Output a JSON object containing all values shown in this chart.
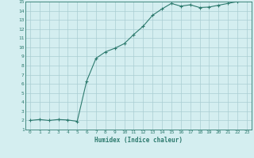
{
  "x": [
    0,
    1,
    2,
    3,
    4,
    5,
    6,
    7,
    8,
    9,
    10,
    11,
    12,
    13,
    14,
    15,
    16,
    17,
    18,
    19,
    20,
    21,
    22,
    23
  ],
  "y": [
    2.0,
    2.1,
    2.0,
    2.1,
    2.05,
    1.9,
    6.3,
    8.8,
    9.5,
    9.9,
    10.4,
    11.4,
    12.3,
    13.5,
    14.2,
    14.8,
    14.5,
    14.65,
    14.35,
    14.4,
    14.6,
    14.8,
    15.0,
    15.2
  ],
  "xlim": [
    -0.5,
    23.5
  ],
  "ylim": [
    1,
    15
  ],
  "yticks": [
    1,
    2,
    3,
    4,
    5,
    6,
    7,
    8,
    9,
    10,
    11,
    12,
    13,
    14,
    15
  ],
  "xticks": [
    0,
    1,
    2,
    3,
    4,
    5,
    6,
    7,
    8,
    9,
    10,
    11,
    12,
    13,
    14,
    15,
    16,
    17,
    18,
    19,
    20,
    21,
    22,
    23
  ],
  "xlabel": "Humidex (Indice chaleur)",
  "line_color": "#2d7a6e",
  "marker": "+",
  "bg_color": "#d4eef0",
  "grid_color": "#aacdd2",
  "axis_label_color": "#2d7a6e",
  "tick_label_color": "#2d7a6e"
}
